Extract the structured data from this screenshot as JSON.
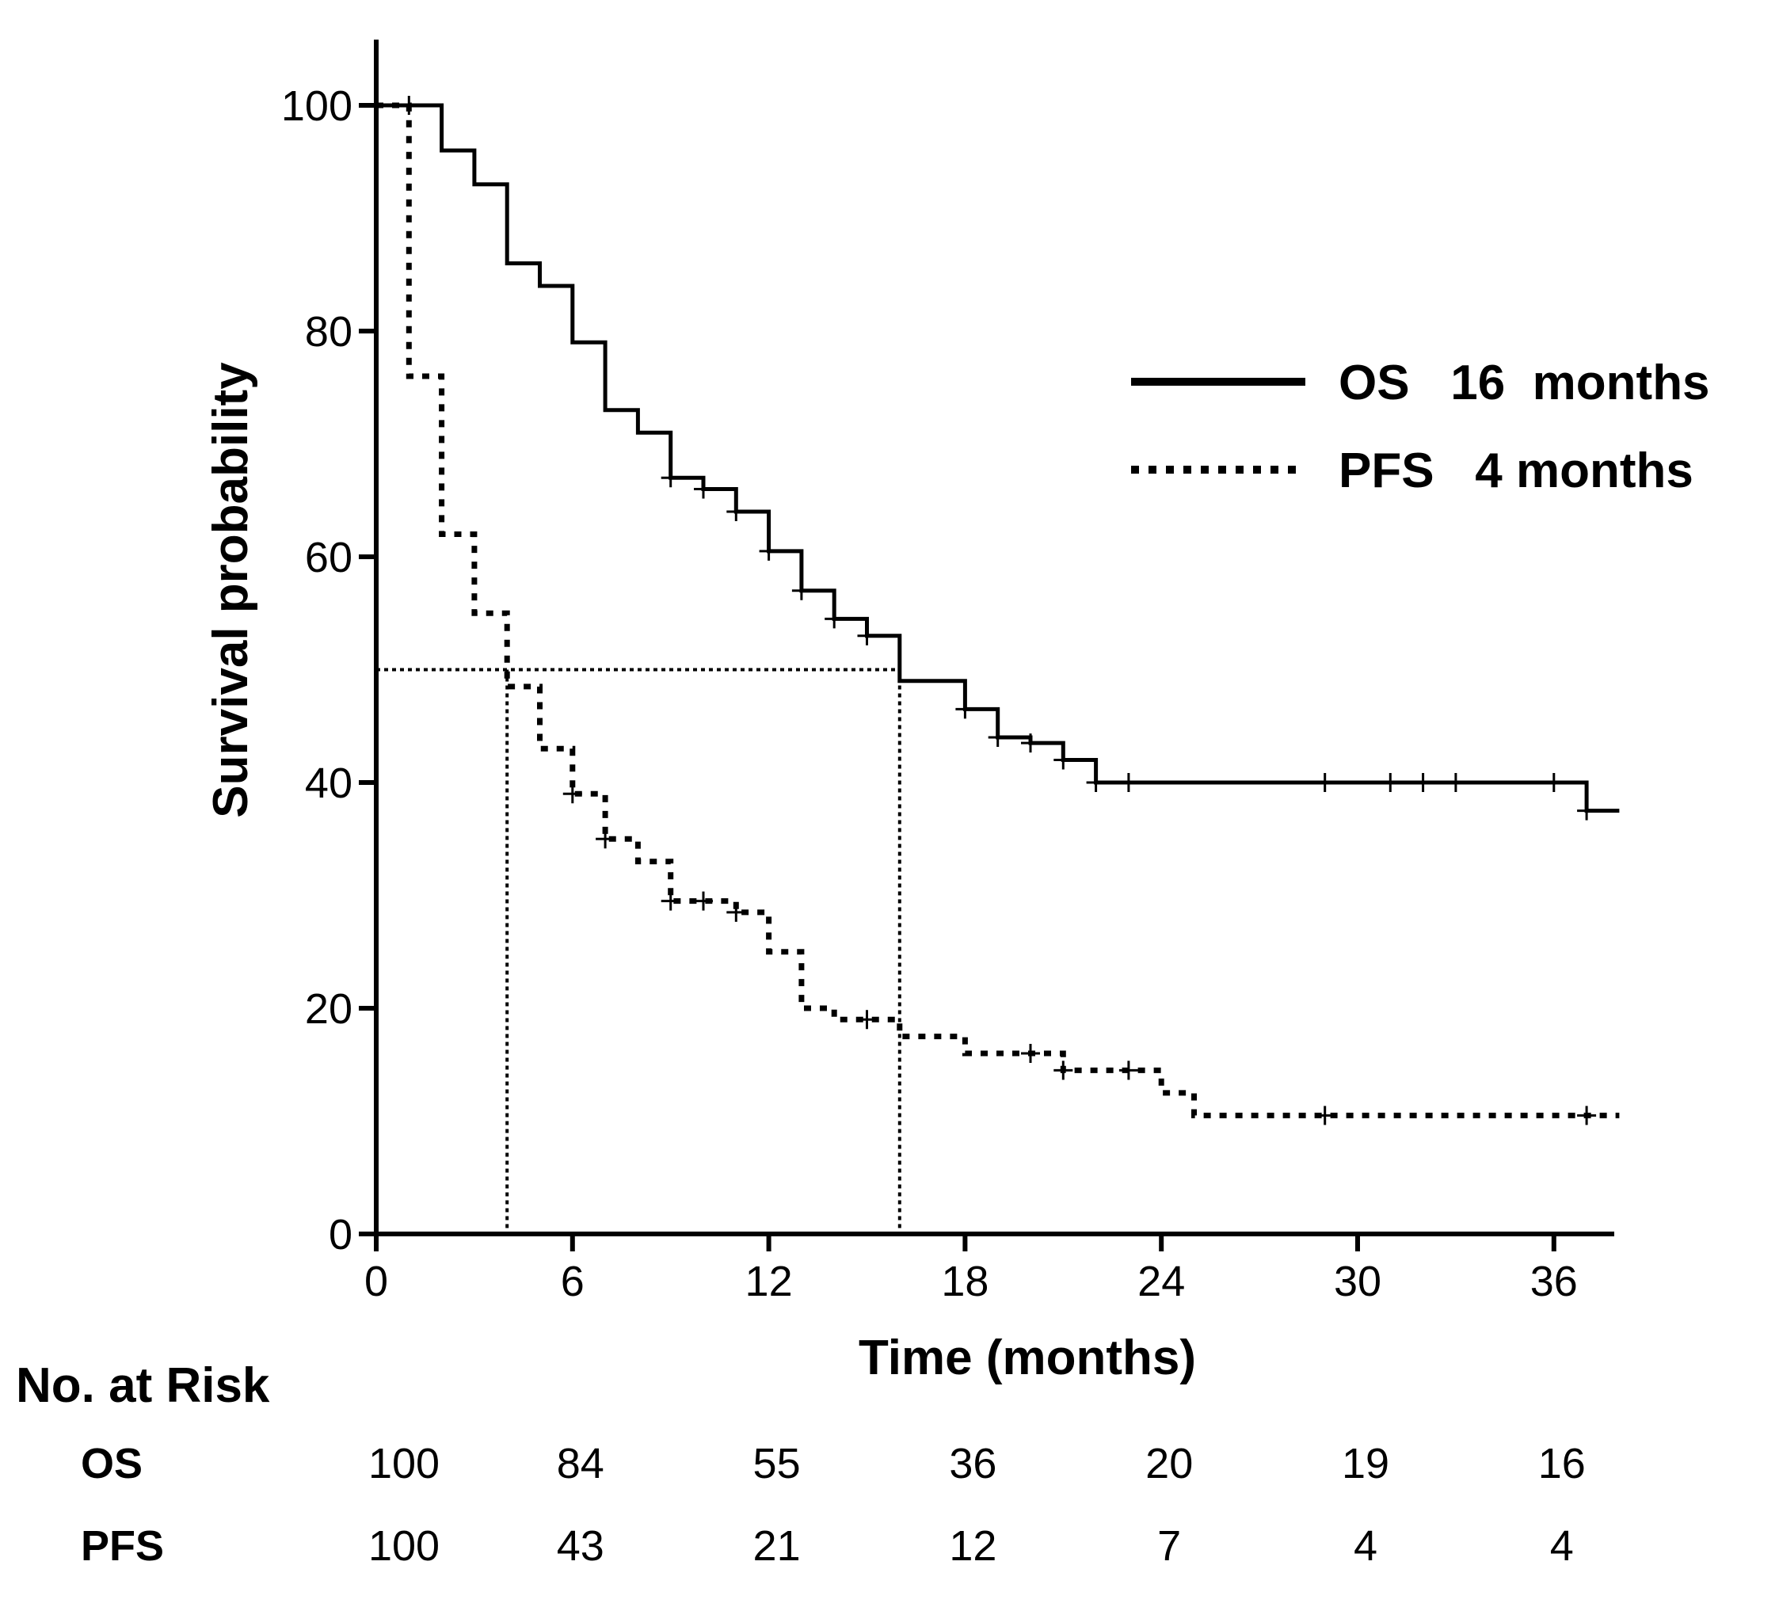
{
  "chart_data": {
    "type": "line",
    "subtype": "kaplan-meier",
    "xlabel": "Time (months)",
    "ylabel": "Survival probability",
    "xlim": [
      0,
      38
    ],
    "ylim": [
      0,
      105
    ],
    "xticks": [
      0,
      6,
      12,
      18,
      24,
      30,
      36
    ],
    "yticks": [
      0,
      20,
      40,
      60,
      80,
      100
    ],
    "grid": false,
    "legend_position": "top-right",
    "series": [
      {
        "name": "OS   16  months",
        "style": "solid",
        "steps": [
          [
            0,
            100
          ],
          [
            2,
            96
          ],
          [
            3,
            93
          ],
          [
            4,
            86
          ],
          [
            5,
            84
          ],
          [
            6,
            79
          ],
          [
            7,
            73
          ],
          [
            8,
            71
          ],
          [
            9,
            67
          ],
          [
            10,
            66
          ],
          [
            11,
            64
          ],
          [
            12,
            60.5
          ],
          [
            13,
            57
          ],
          [
            14,
            54.5
          ],
          [
            15,
            53
          ],
          [
            16,
            49
          ],
          [
            18,
            46.5
          ],
          [
            19,
            44
          ],
          [
            20,
            43.5
          ],
          [
            21,
            42
          ],
          [
            22,
            40
          ],
          [
            37,
            37.5
          ],
          [
            38,
            37.5
          ]
        ],
        "censored": [
          [
            9,
            67
          ],
          [
            10,
            66
          ],
          [
            11,
            64
          ],
          [
            12,
            60.5
          ],
          [
            13,
            57
          ],
          [
            14,
            54.5
          ],
          [
            15,
            53
          ],
          [
            18,
            46.5
          ],
          [
            19,
            44
          ],
          [
            20,
            43.5
          ],
          [
            21,
            42
          ],
          [
            22,
            40
          ],
          [
            23,
            40
          ],
          [
            29,
            40
          ],
          [
            31,
            40
          ],
          [
            32,
            40
          ],
          [
            33,
            40
          ],
          [
            36,
            40
          ],
          [
            37,
            37.5
          ]
        ]
      },
      {
        "name": "PFS   4 months",
        "style": "dotted",
        "steps": [
          [
            0,
            100
          ],
          [
            1,
            76
          ],
          [
            2,
            62
          ],
          [
            3,
            55
          ],
          [
            4,
            48.5
          ],
          [
            5,
            43
          ],
          [
            6,
            39
          ],
          [
            7,
            35
          ],
          [
            8,
            33
          ],
          [
            9,
            29.5
          ],
          [
            11,
            28.5
          ],
          [
            12,
            25
          ],
          [
            13,
            20
          ],
          [
            14,
            19
          ],
          [
            16,
            17.5
          ],
          [
            18,
            16
          ],
          [
            21,
            14.5
          ],
          [
            24,
            12.5
          ],
          [
            25,
            10.5
          ],
          [
            38,
            10.5
          ]
        ],
        "censored": [
          [
            1,
            100
          ],
          [
            6,
            39
          ],
          [
            7,
            35
          ],
          [
            9,
            29.5
          ],
          [
            10,
            29.5
          ],
          [
            11,
            28.5
          ],
          [
            15,
            19
          ],
          [
            20,
            16
          ],
          [
            21,
            14.5
          ],
          [
            23,
            14.5
          ],
          [
            29,
            10.5
          ],
          [
            37,
            10.5
          ]
        ]
      }
    ],
    "annotations": {
      "median_reference_y": 50,
      "median_os_x": 16,
      "median_pfs_x": 4
    },
    "risk_table": {
      "title": "No. at Risk",
      "timepoints": [
        0,
        6,
        12,
        18,
        24,
        30,
        36
      ],
      "rows": [
        {
          "label": "OS",
          "values": [
            "100",
            "84",
            "55",
            "36",
            "20",
            "19",
            "16"
          ]
        },
        {
          "label": "PFS",
          "values": [
            "100",
            "43",
            "21",
            "12",
            "7",
            "4",
            "4"
          ]
        }
      ]
    }
  }
}
